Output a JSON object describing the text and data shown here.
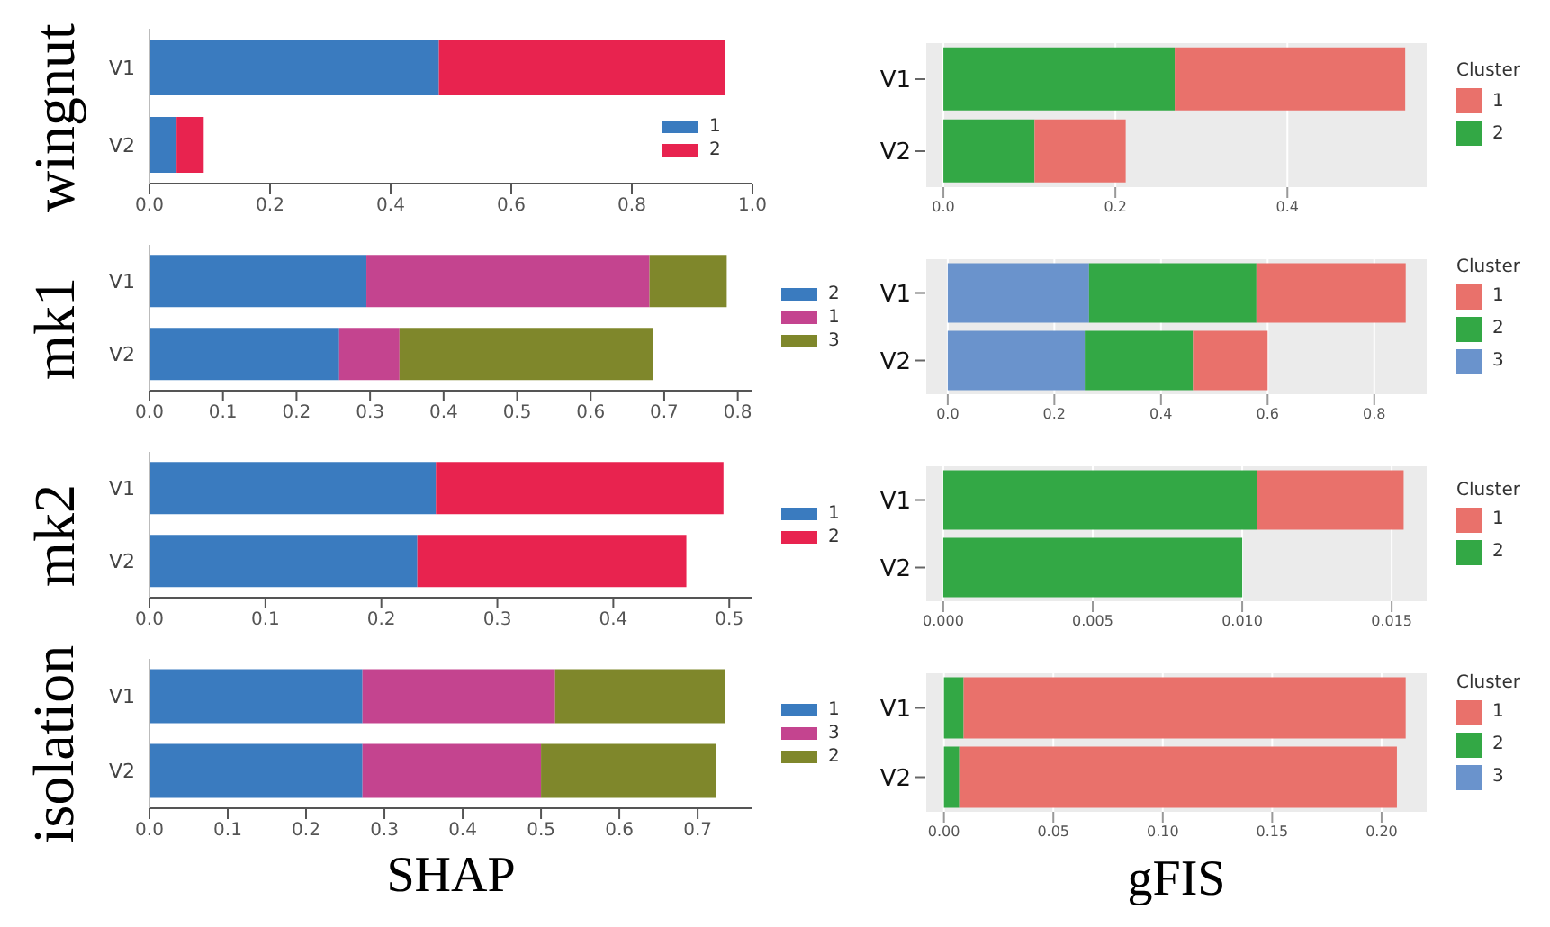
{
  "chart_data": [
    {
      "type": "bar",
      "orientation": "horizontal",
      "stacked": true,
      "ylabel": "wingnut",
      "categories": [
        "V1",
        "V2"
      ],
      "xlim": [
        0,
        1
      ],
      "xticks": [
        {
          "value": 0,
          "label": "0.0"
        },
        0.2,
        0.4,
        0.6,
        0.8,
        {
          "value": 1,
          "label": "1.0"
        }
      ],
      "legend": "bottom right",
      "grid": false,
      "series": [
        {
          "name": "1",
          "color": "#3a7bbf",
          "values": [
            0.48,
            0.045
          ]
        },
        {
          "name": "2",
          "color": "#e8234f",
          "values": [
            0.475,
            0.045
          ]
        }
      ]
    },
    {
      "type": "bar",
      "orientation": "horizontal",
      "stacked": true,
      "legend_title": "Cluster",
      "categories": [
        "V1",
        "V2"
      ],
      "xlim": [
        -0.021,
        0.563
      ],
      "xticks": [
        {
          "value": 0,
          "label": "0.0"
        },
        0.2,
        0.4
      ],
      "legend": "right",
      "grid": "x",
      "series": [
        {
          "name": "2",
          "color": "#33a845",
          "values": [
            0.269,
            0.106
          ]
        },
        {
          "name": "1",
          "color": "#e9716b",
          "values": [
            0.268,
            0.106
          ]
        }
      ]
    },
    {
      "type": "bar",
      "orientation": "horizontal",
      "stacked": true,
      "ylabel": "mk1",
      "categories": [
        "V1",
        "V2"
      ],
      "xlim": [
        0,
        0.82
      ],
      "xticks": [
        {
          "value": 0,
          "label": "0.0"
        },
        0.1,
        0.2,
        0.3,
        0.4,
        0.5,
        0.6,
        0.7,
        0.8
      ],
      "legend": "right",
      "grid": false,
      "series": [
        {
          "name": "2",
          "color": "#3a7bbf",
          "values": [
            0.295,
            0.258
          ]
        },
        {
          "name": "1",
          "color": "#c4448f",
          "values": [
            0.385,
            0.082
          ]
        },
        {
          "name": "3",
          "color": "#7f872b",
          "values": [
            0.105,
            0.345
          ]
        }
      ]
    },
    {
      "type": "bar",
      "orientation": "horizontal",
      "stacked": true,
      "legend_title": "Cluster",
      "categories": [
        "V1",
        "V2"
      ],
      "xlim": [
        -0.042,
        0.9
      ],
      "xticks": [
        {
          "value": 0,
          "label": "0.0"
        },
        0.2,
        0.4,
        0.6,
        0.8
      ],
      "legend": "right",
      "grid": "x",
      "series": [
        {
          "name": "3",
          "color": "#6a93cc",
          "values": [
            0.265,
            0.257
          ]
        },
        {
          "name": "2",
          "color": "#33a845",
          "values": [
            0.314,
            0.203
          ]
        },
        {
          "name": "1",
          "color": "#e9716b",
          "values": [
            0.28,
            0.14
          ]
        }
      ]
    },
    {
      "type": "bar",
      "orientation": "horizontal",
      "stacked": true,
      "ylabel": "mk2",
      "categories": [
        "V1",
        "V2"
      ],
      "xlim": [
        0,
        0.52
      ],
      "xticks": [
        {
          "value": 0,
          "label": "0.0"
        },
        0.1,
        0.2,
        0.3,
        0.4,
        0.5
      ],
      "legend": "right",
      "grid": false,
      "series": [
        {
          "name": "1",
          "color": "#3a7bbf",
          "values": [
            0.247,
            0.231
          ]
        },
        {
          "name": "2",
          "color": "#e8234f",
          "values": [
            0.248,
            0.232
          ]
        }
      ]
    },
    {
      "type": "bar",
      "orientation": "horizontal",
      "stacked": true,
      "legend_title": "Cluster",
      "categories": [
        "V1",
        "V2"
      ],
      "xlim": [
        -0.0006,
        0.0162
      ],
      "xticks": [
        {
          "value": 0,
          "label": "0.000"
        },
        {
          "value": 0.005,
          "label": "0.005"
        },
        {
          "value": 0.01,
          "label": "0.010"
        },
        {
          "value": 0.015,
          "label": "0.015"
        }
      ],
      "legend": "right",
      "grid": "x",
      "series": [
        {
          "name": "2",
          "color": "#33a845",
          "values": [
            0.0105,
            0.01
          ]
        },
        {
          "name": "1",
          "color": "#e9716b",
          "values": [
            0.0049,
            0
          ]
        }
      ]
    },
    {
      "type": "bar",
      "orientation": "horizontal",
      "stacked": true,
      "ylabel": "isolation",
      "xlabel": "SHAP",
      "categories": [
        "V1",
        "V2"
      ],
      "xlim": [
        0,
        0.77
      ],
      "xticks": [
        {
          "value": 0,
          "label": "0.0"
        },
        0.1,
        0.2,
        0.3,
        0.4,
        0.5,
        0.6,
        0.7
      ],
      "legend": "right",
      "grid": false,
      "series": [
        {
          "name": "1",
          "color": "#3a7bbf",
          "values": [
            0.272,
            0.272
          ]
        },
        {
          "name": "3",
          "color": "#c4448f",
          "values": [
            0.246,
            0.228
          ]
        },
        {
          "name": "2",
          "color": "#7f872b",
          "values": [
            0.217,
            0.224
          ]
        }
      ]
    },
    {
      "type": "bar",
      "orientation": "horizontal",
      "stacked": true,
      "legend_title": "Cluster",
      "xlabel": "gFIS",
      "categories": [
        "V1",
        "V2"
      ],
      "xlim": [
        -0.0085,
        0.221
      ],
      "xticks": [
        {
          "value": 0,
          "label": "0.00"
        },
        {
          "value": 0.05,
          "label": "0.05"
        },
        {
          "value": 0.1,
          "label": "0.10"
        },
        {
          "value": 0.15,
          "label": "0.15"
        },
        {
          "value": 0.2,
          "label": "0.20"
        }
      ],
      "legend": "right",
      "grid": "x",
      "series": [
        {
          "name": "3",
          "color": "#6a93cc",
          "values": [
            0,
            0
          ]
        },
        {
          "name": "2",
          "color": "#33a845",
          "values": [
            0.009,
            0.007
          ]
        },
        {
          "name": "1",
          "color": "#e9716b",
          "values": [
            0.202,
            0.2
          ]
        }
      ]
    }
  ]
}
